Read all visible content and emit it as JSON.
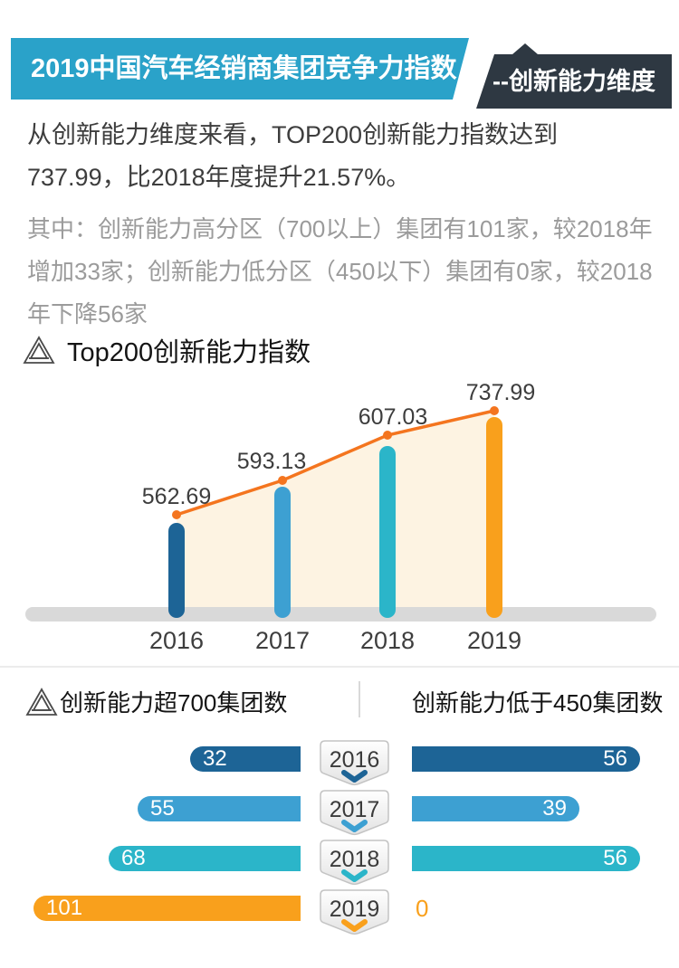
{
  "header": {
    "title": "2019中国汽车经销商集团竞争力指数",
    "subtitle": "--创新能力维度"
  },
  "intro": {
    "p1": "从创新能力维度来看，TOP200创新能力指数达到737.99，比2018年度提升21.57%。",
    "p2": "其中：创新能力高分区（700以上）集团有101家，较2018年增加33家；创新能力低分区（450以下）集团有0家，较2018年下降56家"
  },
  "colors": {
    "banner_blue": "#2aa2c9",
    "banner_dark": "#2e3842",
    "year_colors": [
      "#1d6496",
      "#3da0d2",
      "#2bb5c9",
      "#f9a01c"
    ],
    "line_orange": "#f4751f",
    "area_fill": "#fdf3e2",
    "baseline_gray": "#d9d9d9",
    "value_label_color": "#3d3d3d",
    "year_label_color": "#3e3e3e"
  },
  "chart_data": [
    {
      "type": "line",
      "title": "Top200创新能力指数",
      "categories": [
        "2016",
        "2017",
        "2018",
        "2019"
      ],
      "series": [
        {
          "name": "Top200创新能力指数",
          "values": [
            562.69,
            593.13,
            607.03,
            737.99
          ]
        }
      ],
      "value_labels": [
        "562.69",
        "593.13",
        "607.03",
        "737.99"
      ],
      "xlabel": "",
      "ylabel": "",
      "grid": false,
      "legend": "none",
      "note": "bars under each line point colored per year, cream area fill under line, gray rounded baseline"
    },
    {
      "type": "bar",
      "title": "创新能力超700集团数",
      "categories": [
        "2016",
        "2017",
        "2018",
        "2019"
      ],
      "values": [
        32,
        55,
        68,
        101
      ],
      "orientation": "horizontal-left"
    },
    {
      "type": "bar",
      "title": "创新能力低于450集团数",
      "categories": [
        "2016",
        "2017",
        "2018",
        "2019"
      ],
      "values": [
        56,
        39,
        56,
        0
      ],
      "orientation": "horizontal-right"
    }
  ],
  "bottom": {
    "left_title": "创新能力超700集团数",
    "right_title": "创新能力低于450集团数",
    "rows": [
      {
        "year": "2016",
        "left": "32",
        "right": "56"
      },
      {
        "year": "2017",
        "left": "55",
        "right": "39"
      },
      {
        "year": "2018",
        "left": "68",
        "right": "56"
      },
      {
        "year": "2019",
        "left": "101",
        "right": "0"
      }
    ]
  }
}
